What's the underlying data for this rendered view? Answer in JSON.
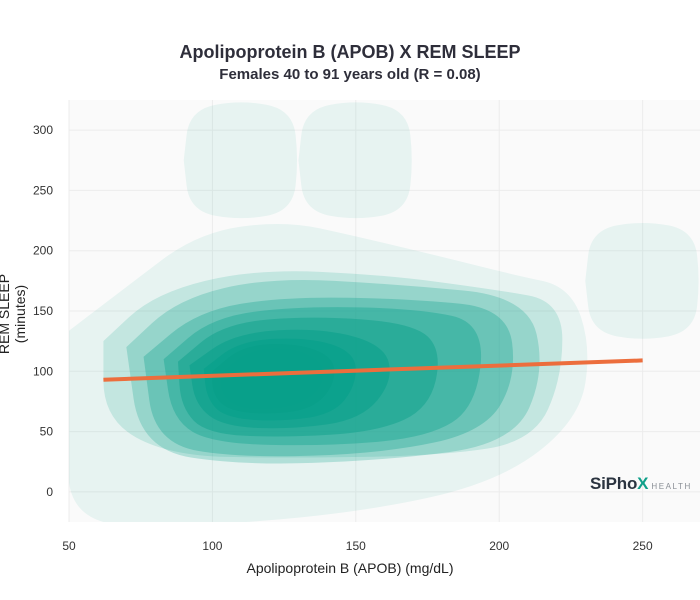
{
  "header": {
    "title": "Apolipoprotein B (APOB) X REM SLEEP",
    "subtitle": "Females 40 to 91 years old (R = 0.08)"
  },
  "axes": {
    "xlabel": "Apolipoprotein B (APOB) (mg/dL)",
    "ylabel": "REM SLEEP (minutes)"
  },
  "logo": {
    "main_text": "SiPho",
    "accent_letter": "X",
    "sub_text": "HEALTH"
  },
  "colors": {
    "density_base": "#08a08a",
    "trend_line": "#ec6e3d",
    "plot_bg": "#fafafa"
  },
  "chart_data": {
    "type": "contour",
    "title": "Apolipoprotein B (APOB) X REM SLEEP",
    "subtitle": "Females 40 to 91 years old (R = 0.08)",
    "xlabel": "Apolipoprotein B (APOB) (mg/dL)",
    "ylabel": "REM SLEEP (minutes)",
    "xlim": [
      50,
      270
    ],
    "ylim": [
      -25,
      325
    ],
    "xticks": [
      50,
      100,
      150,
      200,
      250
    ],
    "yticks": [
      0,
      50,
      100,
      150,
      200,
      250,
      300
    ],
    "grid": true,
    "legend": "none",
    "density_levels": [
      {
        "level": 1,
        "opacity": 0.08,
        "x": [
          50,
          270
        ],
        "y": [
          -25,
          230
        ],
        "note": "outermost envelope"
      },
      {
        "level": 2,
        "opacity": 0.16,
        "x": [
          60,
          225
        ],
        "y": [
          25,
          185
        ]
      },
      {
        "level": 3,
        "opacity": 0.24,
        "x": [
          68,
          218
        ],
        "y": [
          22,
          170
        ]
      },
      {
        "level": 4,
        "opacity": 0.3,
        "x": [
          75,
          206
        ],
        "y": [
          30,
          165
        ]
      },
      {
        "level": 5,
        "opacity": 0.36,
        "x": [
          82,
          196
        ],
        "y": [
          38,
          156
        ]
      },
      {
        "level": 6,
        "opacity": 0.45,
        "x": [
          87,
          180
        ],
        "y": [
          45,
          145
        ]
      },
      {
        "level": 7,
        "opacity": 0.55,
        "x": [
          92,
          162
        ],
        "y": [
          52,
          136
        ]
      },
      {
        "level": 8,
        "opacity": 0.68,
        "x": [
          97,
          150
        ],
        "y": [
          58,
          128
        ]
      },
      {
        "level": 9,
        "opacity": 0.82,
        "x": [
          100,
          142
        ],
        "y": [
          64,
          124
        ]
      },
      {
        "level": 10,
        "opacity": 0.96,
        "x": [
          103,
          138
        ],
        "y": [
          68,
          120
        ]
      }
    ],
    "outlier_blobs": [
      {
        "center_x": 110,
        "center_y": 275
      },
      {
        "center_x": 150,
        "center_y": 275
      },
      {
        "center_x": 250,
        "center_y": 175
      }
    ],
    "trend_line": {
      "x": [
        62,
        250
      ],
      "y": [
        93,
        109
      ]
    }
  }
}
